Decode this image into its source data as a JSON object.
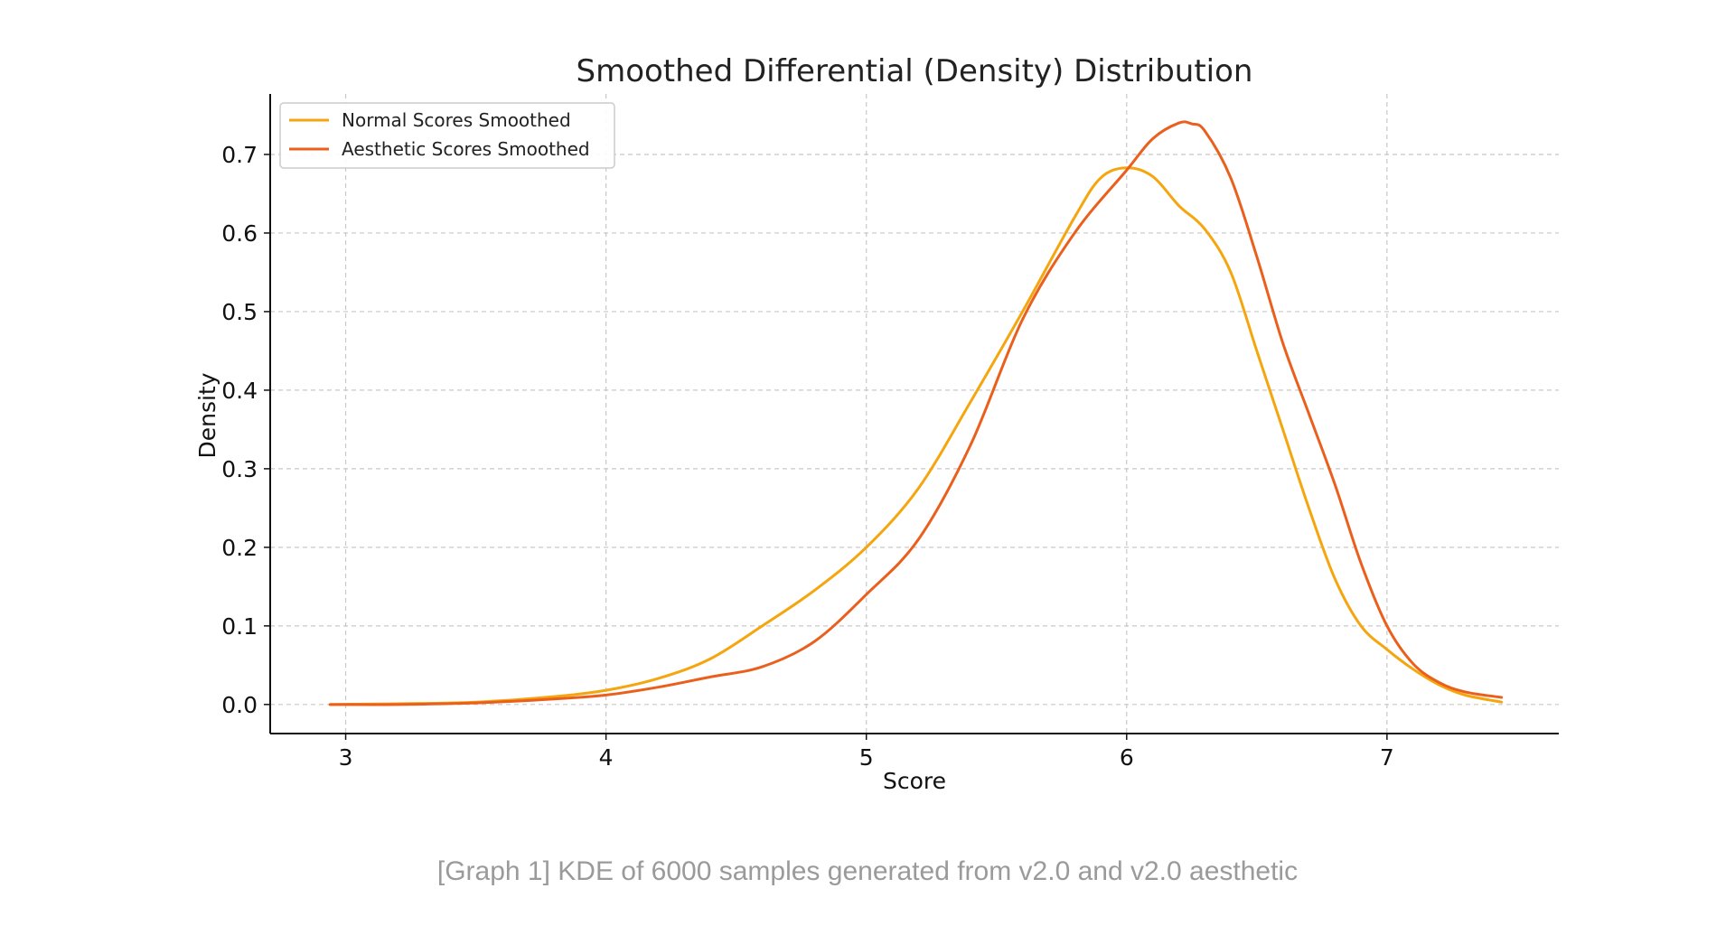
{
  "chart_data": {
    "type": "line",
    "title": "Smoothed Differential (Density) Distribution",
    "xlabel": "Score",
    "ylabel": "Density",
    "xlim": [
      2.71,
      7.66
    ],
    "ylim": [
      -0.037,
      0.777
    ],
    "xticks": [
      3,
      4,
      5,
      6,
      7
    ],
    "yticks": [
      0.0,
      0.1,
      0.2,
      0.3,
      0.4,
      0.5,
      0.6,
      0.7
    ],
    "xtick_labels": [
      "3",
      "4",
      "5",
      "6",
      "7"
    ],
    "ytick_labels": [
      "0.0",
      "0.1",
      "0.2",
      "0.3",
      "0.4",
      "0.5",
      "0.6",
      "0.7"
    ],
    "grid": true,
    "legend_position": "top-left",
    "series": [
      {
        "name": "Normal Scores Smoothed",
        "color": "#f5a60f",
        "x": [
          2.94,
          3.2,
          3.5,
          3.8,
          4.0,
          4.2,
          4.4,
          4.6,
          4.8,
          5.0,
          5.2,
          5.4,
          5.6,
          5.8,
          5.9,
          6.0,
          6.1,
          6.2,
          6.3,
          6.4,
          6.5,
          6.6,
          6.7,
          6.8,
          6.9,
          7.0,
          7.1,
          7.2,
          7.3,
          7.44
        ],
        "y": [
          0.0,
          0.001,
          0.003,
          0.01,
          0.018,
          0.033,
          0.058,
          0.1,
          0.145,
          0.2,
          0.275,
          0.385,
          0.5,
          0.62,
          0.67,
          0.683,
          0.672,
          0.635,
          0.605,
          0.55,
          0.45,
          0.35,
          0.25,
          0.16,
          0.1,
          0.07,
          0.045,
          0.025,
          0.012,
          0.003
        ]
      },
      {
        "name": "Aesthetic Scores Smoothed",
        "color": "#ea5f1c",
        "x": [
          2.94,
          3.2,
          3.5,
          3.8,
          4.0,
          4.2,
          4.4,
          4.6,
          4.8,
          5.0,
          5.2,
          5.4,
          5.6,
          5.8,
          6.0,
          6.1,
          6.2,
          6.25,
          6.3,
          6.4,
          6.5,
          6.6,
          6.7,
          6.8,
          6.9,
          7.0,
          7.1,
          7.2,
          7.3,
          7.44
        ],
        "y": [
          0.0,
          0.0,
          0.002,
          0.007,
          0.012,
          0.022,
          0.035,
          0.048,
          0.08,
          0.14,
          0.21,
          0.33,
          0.49,
          0.6,
          0.68,
          0.72,
          0.74,
          0.739,
          0.73,
          0.67,
          0.57,
          0.46,
          0.37,
          0.28,
          0.18,
          0.1,
          0.052,
          0.028,
          0.016,
          0.009
        ]
      }
    ]
  },
  "caption": "[Graph 1] KDE of 6000 samples generated from v2.0 and v2.0 aesthetic"
}
